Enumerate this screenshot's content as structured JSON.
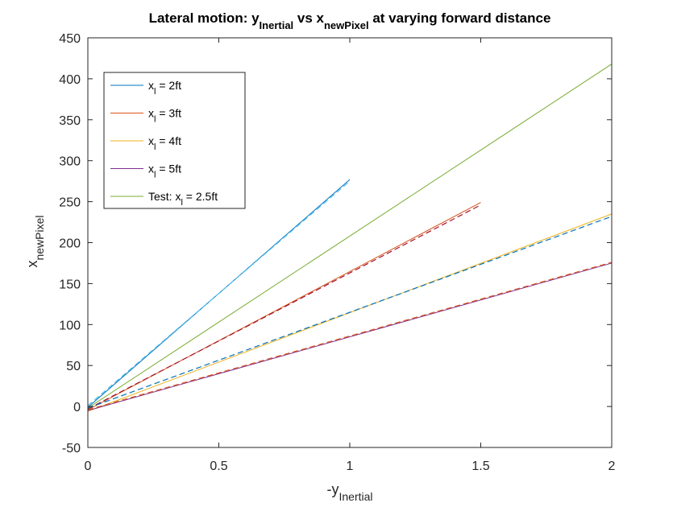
{
  "chart_data": {
    "type": "line",
    "title": {
      "parts": [
        {
          "text": "Lateral motion: y"
        },
        {
          "text": "Inertial",
          "sub": true
        },
        {
          "text": " vs x"
        },
        {
          "text": "newPixel",
          "sub": true
        },
        {
          "text": " at varying forward distance"
        }
      ]
    },
    "xlabel": {
      "parts": [
        {
          "text": "-y"
        },
        {
          "text": "Inertial",
          "sub": true
        }
      ]
    },
    "ylabel": {
      "parts": [
        {
          "text": "x"
        },
        {
          "text": "newPixel",
          "sub": true
        }
      ]
    },
    "xlim": [
      0,
      2
    ],
    "ylim": [
      -50,
      450
    ],
    "xticks": [
      0,
      0.5,
      1,
      1.5,
      2
    ],
    "xtick_labels": [
      "0",
      "0.5",
      "1",
      "1.5",
      "2"
    ],
    "yticks": [
      -50,
      0,
      50,
      100,
      150,
      200,
      250,
      300,
      350,
      400,
      450
    ],
    "ytick_labels": [
      "-50",
      "0",
      "50",
      "100",
      "150",
      "200",
      "250",
      "300",
      "350",
      "400",
      "450"
    ],
    "grid": false,
    "legend_position": "top-left",
    "series": [
      {
        "name": "x_l = 2ft",
        "legend": [
          {
            "text": "x"
          },
          {
            "text": "l",
            "sub": true
          },
          {
            "text": " = 2ft"
          }
        ],
        "color": "#0072BD",
        "style": "solid",
        "x": [
          0,
          1
        ],
        "y": [
          -1,
          277
        ]
      },
      {
        "name": "x_l = 3ft",
        "legend": [
          {
            "text": "x"
          },
          {
            "text": "l",
            "sub": true
          },
          {
            "text": " = 3ft"
          }
        ],
        "color": "#D95319",
        "style": "solid",
        "x": [
          0,
          1.5
        ],
        "y": [
          -4,
          249
        ]
      },
      {
        "name": "x_l = 4ft",
        "legend": [
          {
            "text": "x"
          },
          {
            "text": "l",
            "sub": true
          },
          {
            "text": " = 4ft"
          }
        ],
        "color": "#EDB120",
        "style": "solid",
        "x": [
          0,
          2
        ],
        "y": [
          -6,
          235
        ]
      },
      {
        "name": "x_l = 5ft",
        "legend": [
          {
            "text": "x"
          },
          {
            "text": "l",
            "sub": true
          },
          {
            "text": " = 5ft"
          }
        ],
        "color": "#7E2F8E",
        "style": "solid",
        "x": [
          0,
          2
        ],
        "y": [
          -5,
          175
        ]
      },
      {
        "name": "Test: x_l = 2.5ft",
        "legend": [
          {
            "text": "Test: x"
          },
          {
            "text": "l",
            "sub": true
          },
          {
            "text": " = 2.5ft"
          }
        ],
        "color": "#77AC30",
        "style": "solid",
        "x": [
          0,
          2
        ],
        "y": [
          -2,
          418
        ]
      }
    ],
    "fit_lines": [
      {
        "color": "#4DBEEE",
        "style": "dashed",
        "x": [
          0,
          1
        ],
        "y": [
          1,
          275
        ]
      },
      {
        "color": "#A2142F",
        "style": "dashed",
        "x": [
          0,
          1.5
        ],
        "y": [
          -3,
          246
        ]
      },
      {
        "color": "#0072BD",
        "style": "dashed",
        "x": [
          0,
          2
        ],
        "y": [
          -2,
          232
        ]
      },
      {
        "color": "#D95319",
        "style": "dashed",
        "x": [
          0,
          2
        ],
        "y": [
          -4,
          176
        ]
      }
    ]
  }
}
